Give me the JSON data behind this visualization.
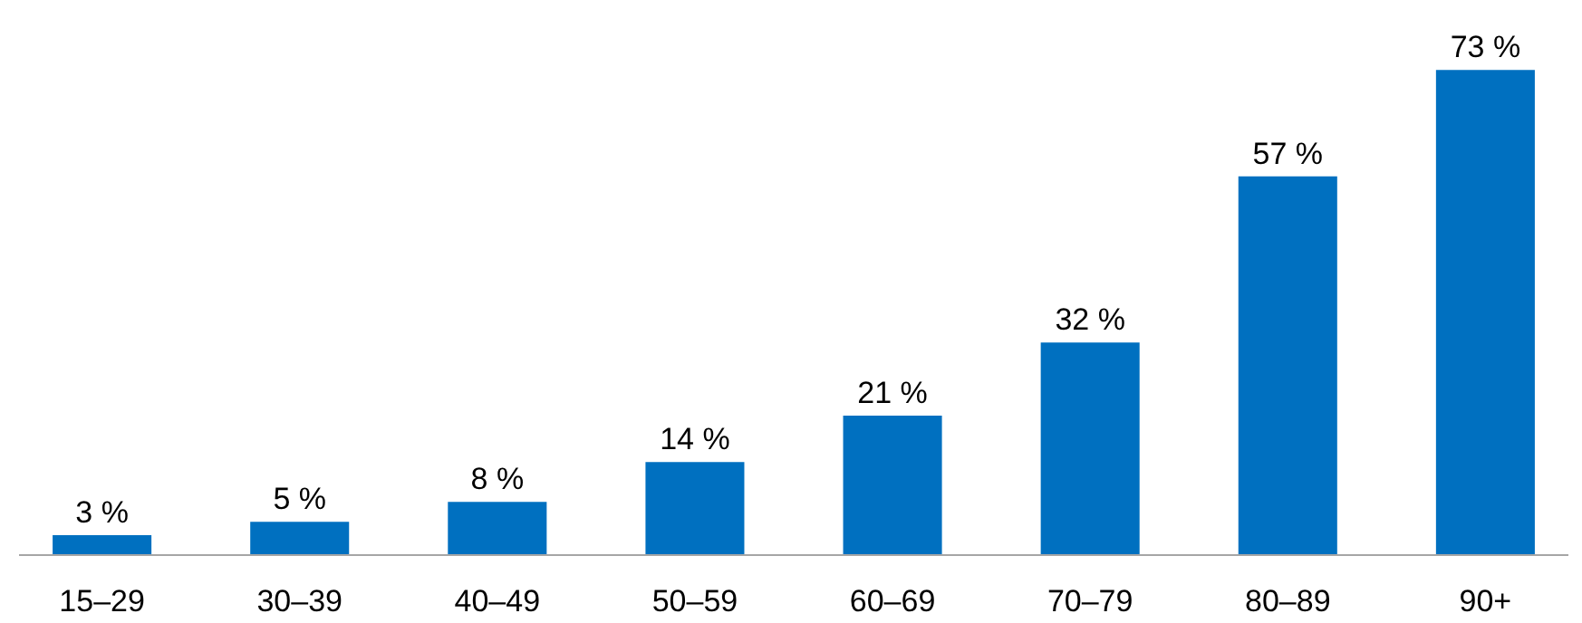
{
  "chart_data": {
    "type": "bar",
    "categories": [
      "15–29",
      "30–39",
      "40–49",
      "50–59",
      "60–69",
      "70–79",
      "80–89",
      "90+"
    ],
    "values": [
      3,
      5,
      8,
      14,
      21,
      32,
      57,
      73
    ],
    "value_labels": [
      "3 %",
      "5 %",
      "8 %",
      "14 %",
      "21 %",
      "32 %",
      "57 %",
      "73 %"
    ],
    "color": "#0070c0",
    "grid": false
  }
}
